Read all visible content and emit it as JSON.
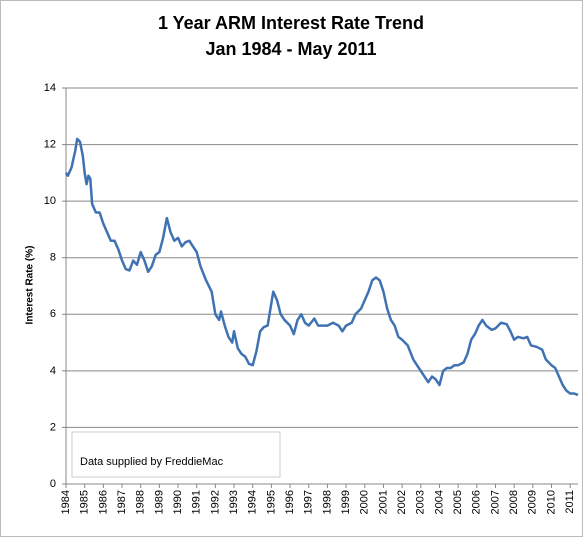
{
  "chart_data": {
    "type": "line",
    "title": [
      "1 Year ARM Interest Rate Trend",
      "Jan 1984 - May 2011"
    ],
    "y_label": "Interest Rate (%)",
    "annotation": "Data supplied by FreddieMac",
    "xlim": [
      1984,
      2011.42
    ],
    "xticks": [
      1984,
      1985,
      1986,
      1987,
      1988,
      1989,
      1990,
      1991,
      1992,
      1993,
      1994,
      1995,
      1996,
      1997,
      1998,
      1999,
      2000,
      2001,
      2002,
      2003,
      2004,
      2005,
      2006,
      2007,
      2008,
      2009,
      2010,
      2011
    ],
    "ylim": [
      0,
      14
    ],
    "yticks": [
      0,
      2,
      4,
      6,
      8,
      10,
      12,
      14
    ],
    "grid": true,
    "x": [
      1984.0,
      1984.1,
      1984.3,
      1984.5,
      1984.6,
      1984.75,
      1984.9,
      1985.0,
      1985.1,
      1985.2,
      1985.3,
      1985.4,
      1985.6,
      1985.8,
      1986.0,
      1986.2,
      1986.4,
      1986.6,
      1986.8,
      1987.0,
      1987.2,
      1987.4,
      1987.6,
      1987.8,
      1988.0,
      1988.2,
      1988.4,
      1988.6,
      1988.8,
      1989.0,
      1989.2,
      1989.4,
      1989.6,
      1989.8,
      1990.0,
      1990.2,
      1990.4,
      1990.6,
      1990.8,
      1991.0,
      1991.2,
      1991.5,
      1991.8,
      1992.0,
      1992.2,
      1992.3,
      1992.5,
      1992.7,
      1992.9,
      1993.0,
      1993.2,
      1993.4,
      1993.6,
      1993.8,
      1994.0,
      1994.2,
      1994.4,
      1994.6,
      1994.8,
      1995.0,
      1995.1,
      1995.3,
      1995.5,
      1995.7,
      1996.0,
      1996.2,
      1996.4,
      1996.6,
      1996.8,
      1997.0,
      1997.3,
      1997.5,
      1997.8,
      1998.0,
      1998.3,
      1998.6,
      1998.8,
      1999.0,
      1999.3,
      1999.5,
      1999.8,
      2000.0,
      2000.2,
      2000.4,
      2000.6,
      2000.8,
      2001.0,
      2001.2,
      2001.4,
      2001.6,
      2001.8,
      2002.0,
      2002.3,
      2002.6,
      2002.9,
      2003.2,
      2003.4,
      2003.6,
      2003.8,
      2004.0,
      2004.2,
      2004.4,
      2004.6,
      2004.8,
      2005.0,
      2005.3,
      2005.5,
      2005.7,
      2005.9,
      2006.1,
      2006.3,
      2006.5,
      2006.8,
      2007.0,
      2007.3,
      2007.6,
      2007.8,
      2008.0,
      2008.2,
      2008.5,
      2008.7,
      2008.9,
      2009.2,
      2009.5,
      2009.7,
      2010.0,
      2010.2,
      2010.4,
      2010.6,
      2010.8,
      2011.0,
      2011.2,
      2011.42
    ],
    "series": [
      {
        "name": "1 Year ARM",
        "color": "#3f72b3",
        "values": [
          11.0,
          10.9,
          11.2,
          11.8,
          12.2,
          12.1,
          11.6,
          11.0,
          10.6,
          10.9,
          10.8,
          9.9,
          9.6,
          9.6,
          9.2,
          8.9,
          8.6,
          8.6,
          8.3,
          7.9,
          7.6,
          7.55,
          7.9,
          7.75,
          8.2,
          7.9,
          7.5,
          7.7,
          8.1,
          8.2,
          8.7,
          9.4,
          8.9,
          8.6,
          8.7,
          8.4,
          8.55,
          8.6,
          8.4,
          8.2,
          7.7,
          7.2,
          6.8,
          6.0,
          5.8,
          6.1,
          5.6,
          5.2,
          5.0,
          5.4,
          4.8,
          4.6,
          4.5,
          4.25,
          4.2,
          4.7,
          5.4,
          5.55,
          5.6,
          6.4,
          6.8,
          6.5,
          6.0,
          5.8,
          5.6,
          5.3,
          5.8,
          6.0,
          5.7,
          5.6,
          5.85,
          5.6,
          5.6,
          5.6,
          5.7,
          5.6,
          5.4,
          5.6,
          5.7,
          6.0,
          6.2,
          6.5,
          6.8,
          7.2,
          7.3,
          7.2,
          6.8,
          6.2,
          5.8,
          5.6,
          5.2,
          5.1,
          4.9,
          4.4,
          4.1,
          3.8,
          3.6,
          3.8,
          3.7,
          3.5,
          4.0,
          4.1,
          4.1,
          4.2,
          4.2,
          4.3,
          4.6,
          5.1,
          5.3,
          5.6,
          5.8,
          5.6,
          5.45,
          5.5,
          5.7,
          5.65,
          5.4,
          5.1,
          5.2,
          5.15,
          5.2,
          4.9,
          4.85,
          4.75,
          4.4,
          4.2,
          4.1,
          3.8,
          3.5,
          3.3,
          3.2,
          3.2,
          3.15
        ]
      }
    ]
  }
}
